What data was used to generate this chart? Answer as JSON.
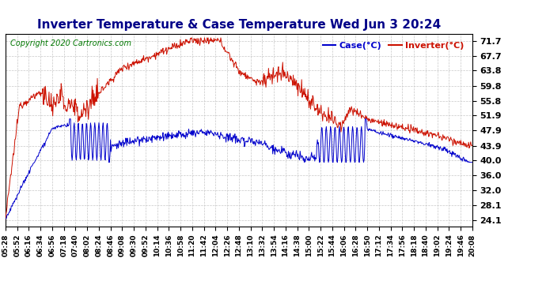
{
  "title": "Inverter Temperature & Case Temperature Wed Jun 3 20:24",
  "copyright": "Copyright 2020 Cartronics.com",
  "legend_case": "Case(°C)",
  "legend_inverter": "Inverter(°C)",
  "yticks": [
    24.1,
    28.1,
    32.0,
    36.0,
    40.0,
    43.9,
    47.9,
    51.9,
    55.8,
    59.8,
    63.8,
    67.7,
    71.7
  ],
  "ymin": 22.5,
  "ymax": 73.5,
  "background_color": "#ffffff",
  "plot_bg_color": "#ffffff",
  "grid_color": "#c8c8c8",
  "red_color": "#cc1100",
  "blue_color": "#0000cc",
  "title_color": "#000088",
  "copyright_color": "#007700",
  "xtick_labels": [
    "05:28",
    "05:52",
    "06:16",
    "06:34",
    "06:56",
    "07:18",
    "07:40",
    "08:02",
    "08:24",
    "08:46",
    "09:08",
    "09:30",
    "09:52",
    "10:14",
    "10:36",
    "10:58",
    "11:20",
    "11:42",
    "12:04",
    "12:26",
    "12:48",
    "13:10",
    "13:32",
    "13:54",
    "14:16",
    "14:38",
    "15:00",
    "15:22",
    "15:44",
    "16:06",
    "16:28",
    "16:50",
    "17:12",
    "17:34",
    "17:56",
    "18:18",
    "18:40",
    "19:02",
    "19:24",
    "19:46",
    "20:08"
  ],
  "n_points": 890
}
